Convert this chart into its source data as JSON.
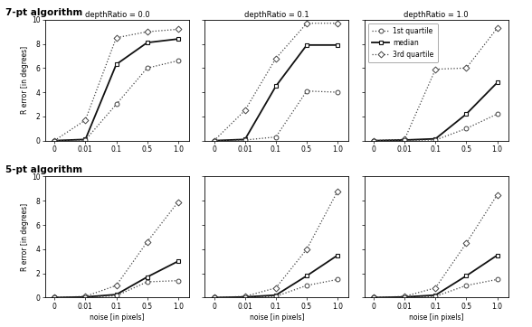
{
  "x_ticks": [
    0,
    0.01,
    0.1,
    0.5,
    1.0
  ],
  "x_tick_labels": [
    "0",
    "0.01",
    "0.1",
    "0.5",
    "1.0"
  ],
  "x_label": "noise [in pixels]",
  "y_label": "R error [in degrees]",
  "ylim": [
    0,
    10
  ],
  "yticks": [
    0,
    2,
    4,
    6,
    8,
    10
  ],
  "row_labels": [
    "7-pt algorithm",
    "5-pt algorithm"
  ],
  "col_titles": [
    "depthRatio = 0.0",
    "depthRatio = 0.1",
    "depthRatio = 1.0"
  ],
  "data": {
    "7pt": {
      "depthRatio_0.0": {
        "q1": [
          0,
          0.05,
          3.0,
          6.0,
          6.6
        ],
        "median": [
          0,
          0.1,
          6.3,
          8.1,
          8.4
        ],
        "q3": [
          0,
          1.7,
          8.5,
          9.0,
          9.2
        ]
      },
      "depthRatio_0.1": {
        "q1": [
          0,
          0.05,
          0.3,
          4.1,
          4.0
        ],
        "median": [
          0,
          0.1,
          4.5,
          7.9,
          7.9
        ],
        "q3": [
          0,
          2.5,
          6.8,
          9.7,
          9.7
        ]
      },
      "depthRatio_1.0": {
        "q1": [
          0,
          0.02,
          0.05,
          1.0,
          2.2
        ],
        "median": [
          0,
          0.05,
          0.15,
          2.2,
          4.8
        ],
        "q3": [
          0,
          0.1,
          5.9,
          6.0,
          9.3
        ]
      }
    },
    "5pt": {
      "depthRatio_0.0": {
        "q1": [
          0,
          0.02,
          0.15,
          1.3,
          1.4
        ],
        "median": [
          0,
          0.05,
          0.25,
          1.7,
          3.0
        ],
        "q3": [
          0,
          0.1,
          1.0,
          4.6,
          7.9
        ]
      },
      "depthRatio_0.1": {
        "q1": [
          0,
          0.02,
          0.1,
          1.0,
          1.5
        ],
        "median": [
          0,
          0.05,
          0.2,
          1.8,
          3.5
        ],
        "q3": [
          0,
          0.1,
          0.8,
          4.0,
          8.8
        ]
      },
      "depthRatio_1.0": {
        "q1": [
          0,
          0.02,
          0.1,
          1.0,
          1.5
        ],
        "median": [
          0,
          0.05,
          0.2,
          1.8,
          3.5
        ],
        "q3": [
          0,
          0.1,
          0.8,
          4.5,
          8.5
        ]
      }
    }
  }
}
